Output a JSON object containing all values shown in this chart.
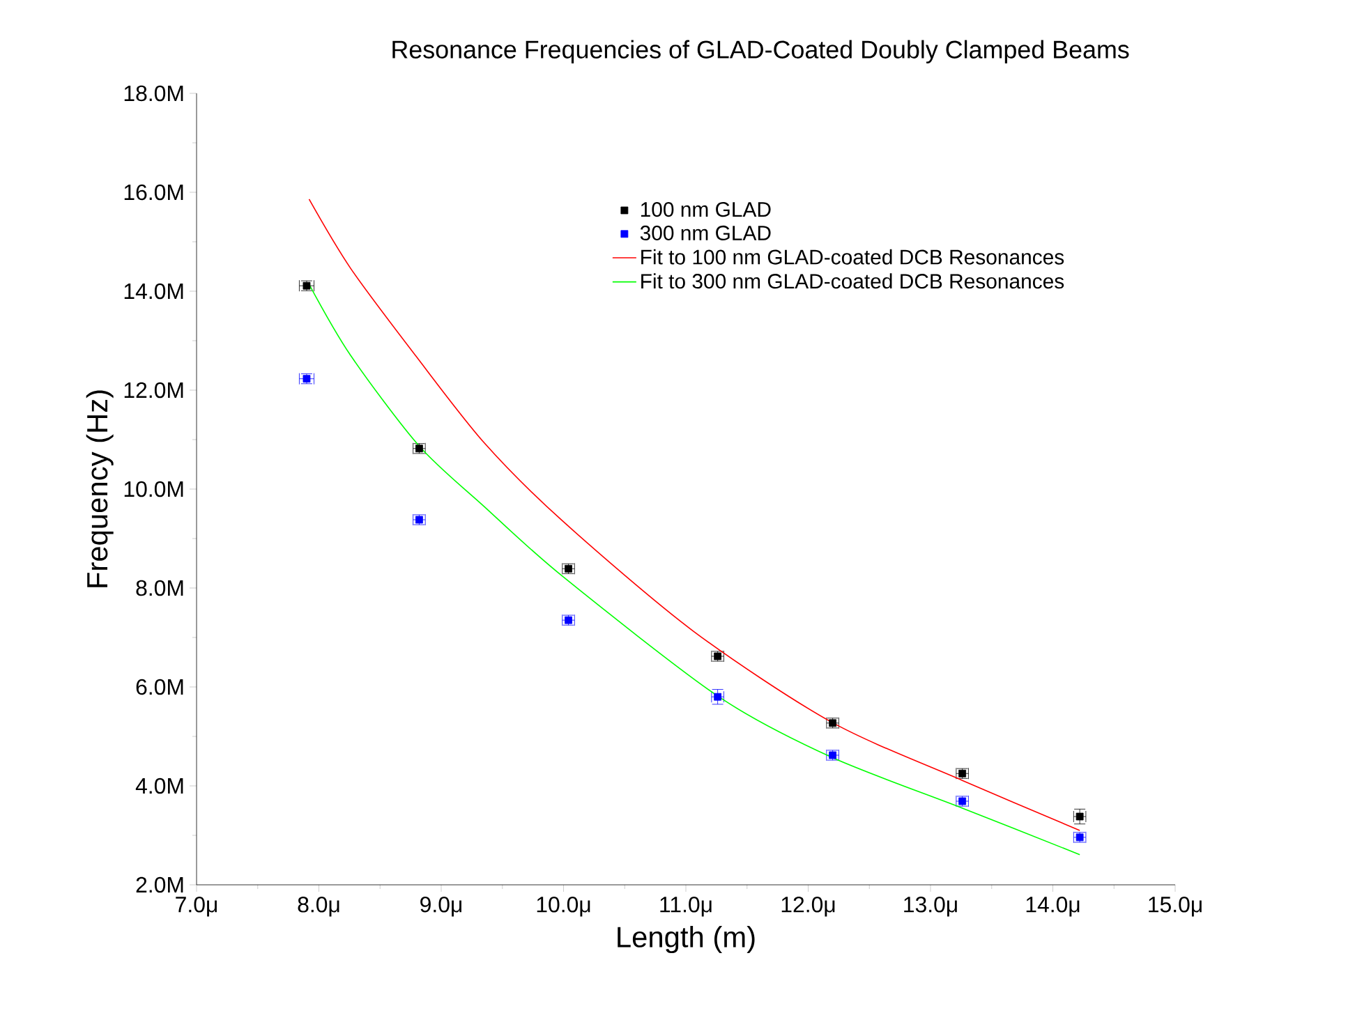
{
  "chart_data": {
    "type": "scatter",
    "title": "Resonance Frequencies of GLAD-Coated Doubly Clamped Beams",
    "xlabel": "Length (m)",
    "ylabel": "Frequency (Hz)",
    "xlim": [
      7.0,
      15.0
    ],
    "ylim": [
      2000000.0,
      18000000.0
    ],
    "xticks": [
      {
        "value": 7.0,
        "label": "7.0μ"
      },
      {
        "value": 8.0,
        "label": "8.0μ"
      },
      {
        "value": 9.0,
        "label": "9.0μ"
      },
      {
        "value": 10.0,
        "label": "10.0μ"
      },
      {
        "value": 11.0,
        "label": "11.0μ"
      },
      {
        "value": 12.0,
        "label": "12.0μ"
      },
      {
        "value": 13.0,
        "label": "13.0μ"
      },
      {
        "value": 14.0,
        "label": "14.0μ"
      },
      {
        "value": 15.0,
        "label": "15.0μ"
      }
    ],
    "yticks": [
      {
        "value": 2000000.0,
        "label": "2.0M"
      },
      {
        "value": 4000000.0,
        "label": "4.0M"
      },
      {
        "value": 6000000.0,
        "label": "6.0M"
      },
      {
        "value": 8000000.0,
        "label": "8.0M"
      },
      {
        "value": 10000000.0,
        "label": "10.0M"
      },
      {
        "value": 12000000.0,
        "label": "12.0M"
      },
      {
        "value": 14000000.0,
        "label": "14.0M"
      },
      {
        "value": 16000000.0,
        "label": "16.0M"
      },
      {
        "value": 18000000.0,
        "label": "18.0M"
      }
    ],
    "legend": "top right",
    "series": [
      {
        "name": "100 nm GLAD",
        "type": "scatter",
        "marker": "square",
        "color": "#000000",
        "x": [
          7.9,
          8.82,
          10.04,
          11.26,
          12.2,
          13.26,
          14.22
        ],
        "values": [
          14110000.0,
          10820000.0,
          8390000.0,
          6620000.0,
          5270000.0,
          4250000.0,
          3380000.0
        ],
        "errors": [
          100000.0,
          100000.0,
          100000.0,
          100000.0,
          100000.0,
          100000.0,
          150000.0
        ],
        "xerrors": [
          0.06,
          0.05,
          0.05,
          0.05,
          0.05,
          0.05,
          0.05
        ]
      },
      {
        "name": "300 nm GLAD",
        "type": "scatter",
        "marker": "square",
        "color": "#0000ff",
        "x": [
          7.9,
          8.82,
          10.04,
          11.26,
          12.2,
          13.26,
          14.22
        ],
        "values": [
          12230000.0,
          9380000.0,
          7350000.0,
          5800000.0,
          4620000.0,
          3690000.0,
          2960000.0
        ],
        "errors": [
          100000.0,
          100000.0,
          100000.0,
          150000.0,
          100000.0,
          100000.0,
          100000.0
        ],
        "xerrors": [
          0.06,
          0.05,
          0.05,
          0.05,
          0.05,
          0.05,
          0.05
        ]
      },
      {
        "name": "Fit to 100 nm GLAD-coated DCB Resonances",
        "type": "line",
        "marker": "none",
        "color": "#ff0000",
        "x": [
          7.92,
          8.26,
          8.79,
          9.35,
          9.99,
          11.06,
          12.19,
          13.26,
          14.22
        ],
        "values": [
          15860000.0,
          14460000.0,
          12700000.0,
          10940000.0,
          9360000.0,
          7130000.0,
          5290000.0,
          4110000.0,
          3100000.0
        ]
      },
      {
        "name": "Fit to 300 nm GLAD-coated DCB Resonances",
        "type": "line",
        "marker": "none",
        "color": "#00ff00",
        "x": [
          7.92,
          8.26,
          8.82,
          9.35,
          9.99,
          11.27,
          12.19,
          13.26,
          14.22
        ],
        "values": [
          14140000.0,
          12700000.0,
          10870000.0,
          9650000.0,
          8240000.0,
          5800000.0,
          4580000.0,
          3550000.0,
          2610000.0
        ]
      }
    ]
  }
}
